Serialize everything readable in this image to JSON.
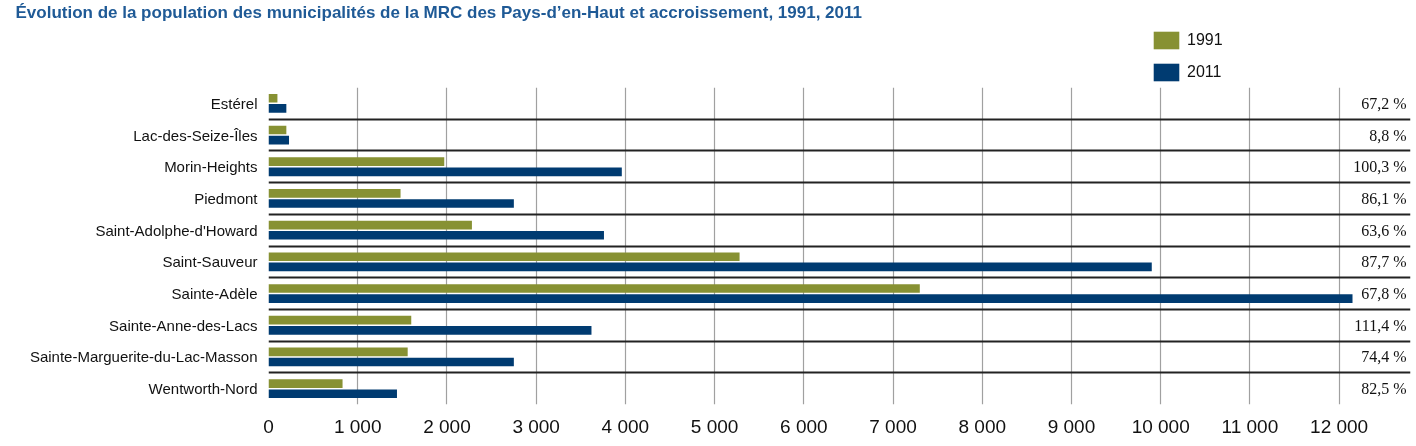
{
  "chart_data": {
    "type": "bar",
    "orientation": "horizontal",
    "title": "Évolution de la population des municipalités de la MRC des Pays-d’en-Haut et accroissement, 1991, 2011",
    "categories": [
      "Estérel",
      "Lac-des-Seize-Îles",
      "Morin-Heights",
      "Piedmont",
      "Saint-Adolphe-d'Howard",
      "Saint-Sauveur",
      "Sainte-Adèle",
      "Sainte-Anne-des-Lacs",
      "Sainte-Marguerite-du-Lac-Masson",
      "Wentworth-Nord"
    ],
    "annotations": [
      "67,2 %",
      "8,8 %",
      "100,3 %",
      "86,1 %",
      "63,6 %",
      "87,7 %",
      "67,8 %",
      "111,4 %",
      "74,4 %",
      "82,5 %"
    ],
    "series": [
      {
        "name": "1991",
        "color": "#879133",
        "values": [
          100,
          200,
          1970,
          1480,
          2280,
          5280,
          7300,
          1600,
          1560,
          830
        ]
      },
      {
        "name": "2011",
        "color": "#003b71",
        "values": [
          200,
          230,
          3960,
          2750,
          3760,
          9900,
          12150,
          3620,
          2750,
          1440
        ]
      }
    ],
    "xlim": [
      0,
      12800
    ],
    "xticks": [
      0,
      {
        "value": 1000,
        "label": "1 000"
      },
      {
        "value": 2000,
        "label": "2 000"
      },
      {
        "value": 3000,
        "label": "3 000"
      },
      {
        "value": 4000,
        "label": "4 000"
      },
      {
        "value": 5000,
        "label": "5 000"
      },
      {
        "value": 6000,
        "label": "6 000"
      },
      {
        "value": 7000,
        "label": "7 000"
      },
      {
        "value": 8000,
        "label": "8 000"
      },
      {
        "value": 9000,
        "label": "9 000"
      },
      {
        "value": 10000,
        "label": "10 000"
      },
      {
        "value": 11000,
        "label": "11 000"
      },
      {
        "value": 12000,
        "label": "12 000"
      }
    ],
    "grid": true,
    "legend": "top right"
  }
}
